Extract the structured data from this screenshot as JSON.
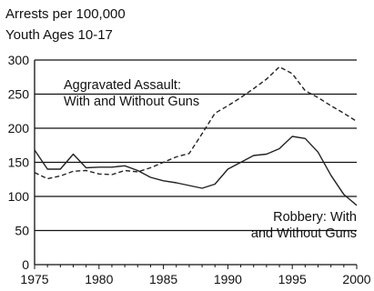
{
  "chart_data": {
    "type": "line",
    "ylabel_line1": "Arrests per 100,000",
    "ylabel_line2": "Youth Ages 10-17",
    "xlim": [
      1975,
      2000
    ],
    "ylim": [
      0,
      300
    ],
    "x_ticks": [
      "1975",
      "1980",
      "1985",
      "1990",
      "1995",
      "2000"
    ],
    "y_ticks": [
      "0",
      "50",
      "100",
      "150",
      "200",
      "250",
      "300"
    ],
    "grid": "horizontal",
    "legend": "none",
    "annotations": [
      {
        "lines": [
          "Aggravated Assault:",
          "With and Without Guns"
        ]
      },
      {
        "lines": [
          "Robbery: With",
          "and Without Guns"
        ]
      }
    ],
    "x": [
      1975,
      1976,
      1977,
      1978,
      1979,
      1980,
      1981,
      1982,
      1983,
      1984,
      1985,
      1986,
      1987,
      1988,
      1989,
      1990,
      1991,
      1992,
      1993,
      1994,
      1995,
      1996,
      1997,
      1998,
      1999,
      2000
    ],
    "series": [
      {
        "style": "dashed",
        "color": "#222222",
        "values": [
          135,
          126,
          130,
          137,
          138,
          133,
          132,
          138,
          136,
          142,
          150,
          158,
          163,
          192,
          222,
          233,
          245,
          258,
          272,
          290,
          280,
          255,
          245,
          233,
          222,
          210
        ]
      },
      {
        "style": "solid",
        "color": "#222222",
        "values": [
          168,
          140,
          140,
          162,
          142,
          143,
          143,
          145,
          138,
          128,
          123,
          120,
          116,
          112,
          118,
          140,
          150,
          160,
          162,
          170,
          188,
          185,
          165,
          131,
          103,
          87
        ]
      }
    ]
  }
}
